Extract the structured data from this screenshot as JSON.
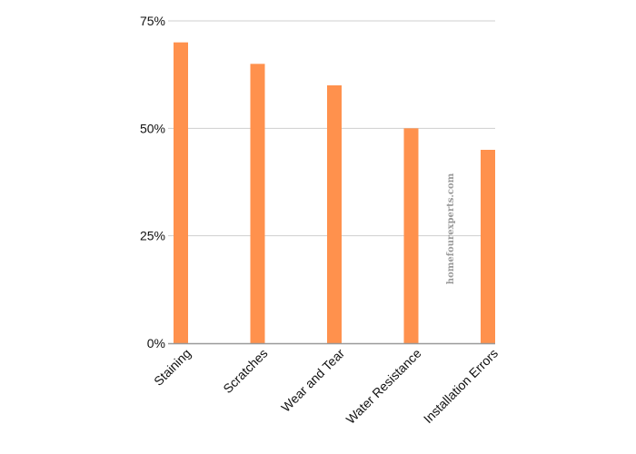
{
  "chart_data": {
    "type": "bar",
    "title": "",
    "xlabel": "",
    "ylabel": "",
    "categories": [
      "Staining",
      "Scratches",
      "Wear and Tear",
      "Water Resistance",
      "Installation Errors"
    ],
    "series": [
      {
        "values": [
          70,
          65,
          60,
          50,
          45
        ]
      }
    ],
    "ylim": [
      0,
      75
    ],
    "y_ticks": [
      {
        "value": 0,
        "label": "0%"
      },
      {
        "value": 25,
        "label": "25%"
      },
      {
        "value": 50,
        "label": "50%"
      },
      {
        "value": 75,
        "label": "75%"
      }
    ],
    "grid": true,
    "legend": "none",
    "bar_color": "#FF914D",
    "grid_color": "#cfcfcf",
    "axis_color": "#9a9a9a"
  },
  "watermark": {
    "text": "homefourexperts.com"
  }
}
